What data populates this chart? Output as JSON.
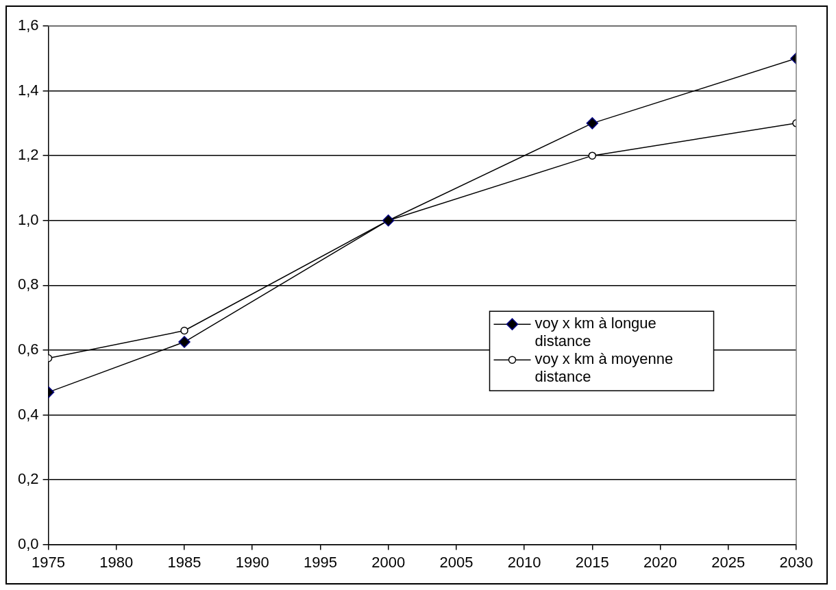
{
  "chart_data": {
    "type": "line",
    "x": [
      1975,
      1985,
      2000,
      2015,
      2030
    ],
    "series": [
      {
        "name": "voy x km à longue distance",
        "color": "#000000",
        "marker": "diamond",
        "values": [
          0.47,
          0.625,
          1.0,
          1.3,
          1.5
        ]
      },
      {
        "name": "voy x km à moyenne distance",
        "color": "#000000",
        "marker": "circle",
        "values": [
          0.575,
          0.66,
          1.0,
          1.2,
          1.3
        ]
      }
    ],
    "xlim": [
      1975,
      2030
    ],
    "xticks": [
      1975,
      1980,
      1985,
      1990,
      1995,
      2000,
      2005,
      2010,
      2015,
      2020,
      2025,
      2030
    ],
    "ylim": [
      0,
      1.6
    ],
    "yticks": [
      {
        "value": 0,
        "label": "0,0"
      },
      {
        "value": 0.2,
        "label": "0,2"
      },
      {
        "value": 0.4,
        "label": "0,4"
      },
      {
        "value": 0.6,
        "label": "0,6"
      },
      {
        "value": 0.8,
        "label": "0,8"
      },
      {
        "value": 1.0,
        "label": "1,0"
      },
      {
        "value": 1.2,
        "label": "1,2"
      },
      {
        "value": 1.4,
        "label": "1,4"
      },
      {
        "value": 1.6,
        "label": "1,6"
      }
    ],
    "grid": "y",
    "legend": "right"
  }
}
